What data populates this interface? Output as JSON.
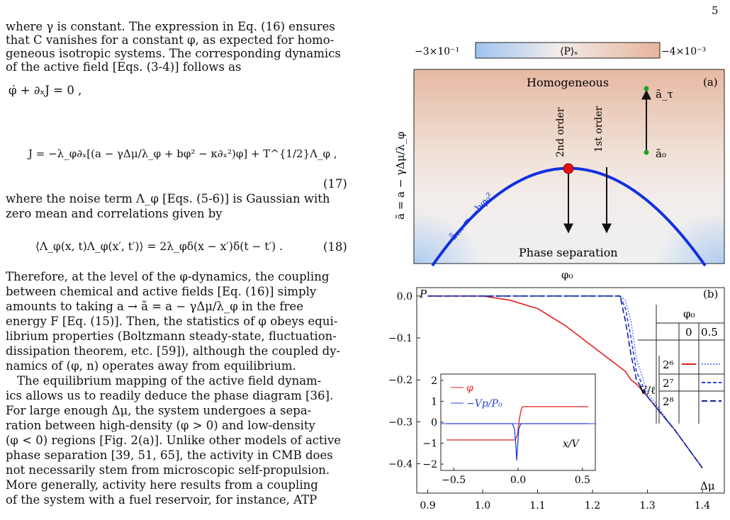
{
  "page_number": "5",
  "text": {
    "p1_l1": "where γ is constant. The expression in Eq. (16) ensures",
    "p1_l2": "that C vanishes for a constant φ, as expected for homo-",
    "p1_l3": "geneous isotropic systems. The corresponding dynamics",
    "p1_l4": "of the active field [Eqs. (3-4)] follows as",
    "eq17a": "φ̇ + ∂ₓJ = 0 ,",
    "eq17b": "J = −λ_φ∂ₓ[(a − γΔμ/λ_φ + bφ² − κ∂ₓ²)φ] + T^{1/2}Λ_φ ,",
    "eq17_num": "(17)",
    "p2_l1": "where the noise term Λ_φ [Eqs. (5-6)] is Gaussian with",
    "p2_l2": "zero mean and correlations given by",
    "eq18": "⟨Λ_φ(x, t)Λ_φ(x′, t′)⟩ = 2λ_φδ(x − x′)δ(t − t′) .",
    "eq18_num": "(18)",
    "p3_l1": "Therefore, at the level of the φ-dynamics, the coupling",
    "p3_l2": "between chemical and active fields [Eq. (16)] simply",
    "p3_l3": "amounts to taking a → ã = a − γΔμ/λ_φ in the free",
    "p3_l4": "energy F [Eq. (15)]. Then, the statistics of φ obeys equi-",
    "p3_l5": "librium properties (Boltzmann steady-state, fluctuation-",
    "p3_l6": "dissipation theorem, etc. [59]), although the coupled dy-",
    "p3_l7": "namics of (φ, n) operates away from equilibrium.",
    "p4_l1": "The equilibrium mapping of the active field dynam-",
    "p4_l2": "ics allows us to readily deduce the phase diagram [36].",
    "p4_l3": "For large enough Δμ, the system undergoes a sepa-",
    "p4_l4": "ration between high-density (φ > 0) and low-density",
    "p4_l5": "(φ < 0) regions [Fig. 2(a)]. Unlike other models of active",
    "p4_l6": "phase separation [39, 51, 65], the activity in CMB does",
    "p4_l7": "not necessarily stem from microscopic self-propulsion.",
    "p4_l8": "More generally, activity here results from a coupling",
    "p4_l9": "of the system with a fuel reservoir, for instance, ATP"
  },
  "figure_a": {
    "colorbar_left": "−3×10⁻¹",
    "colorbar_label": "⟨P⟩ₛ",
    "colorbar_right": "−4×10⁻³",
    "panel": "(a)",
    "ylabel": "ã = a − γΔμ/λ_φ",
    "xlabel": "φ₀",
    "homogeneous": "Homogeneous",
    "phase_sep": "Phase separation",
    "second_order": "2nd order",
    "first_order": "1st order",
    "a_tau": "ã_τ",
    "a_0": "ã₀",
    "curve_label": "ã₁ₛₜ = −bφ₀²",
    "colors": {
      "curve": "#1030e0",
      "critical": "#e01010",
      "point": "#20a020",
      "hot": "#e8b8a0",
      "cold": "#a8c8f0"
    }
  },
  "chart_data": {
    "type": "line",
    "panel": "(b)",
    "ylabel": "P",
    "xlabel": "Δμ",
    "xlim": [
      0.88,
      1.44
    ],
    "ylim": [
      -0.47,
      0.02
    ],
    "xticks": [
      "0.9",
      "1.0",
      "1.1",
      "1.2",
      "1.3",
      "1.4"
    ],
    "yticks": [
      "0.0",
      "−0.1",
      "−0.2",
      "−0.3",
      "−0.4"
    ],
    "x": [
      0.9,
      1.0,
      1.05,
      1.1,
      1.15,
      1.2,
      1.25,
      1.26,
      1.27,
      1.28,
      1.3,
      1.35,
      1.4
    ],
    "series": [
      {
        "color": "#e02020",
        "style": "solid",
        "values": [
          0,
          0,
          -0.01,
          -0.03,
          -0.07,
          -0.12,
          -0.17,
          -0.18,
          -0.2,
          -0.21,
          -0.24,
          -0.32,
          -0.41
        ]
      },
      {
        "color": "#7080ff",
        "style": "dotted",
        "values": [
          0,
          0,
          0,
          0,
          0,
          0,
          0,
          -0.01,
          -0.06,
          -0.15,
          -0.23,
          -0.32,
          -0.41
        ]
      },
      {
        "color": "#2040e0",
        "style": "dashed",
        "values": [
          0,
          0,
          0,
          0,
          0,
          0,
          0,
          -0.03,
          -0.1,
          -0.18,
          -0.24,
          -0.32,
          -0.41
        ]
      },
      {
        "color": "#102090",
        "style": "longdash",
        "values": [
          0,
          0,
          0,
          0,
          0,
          0,
          0,
          -0.06,
          -0.14,
          -0.2,
          -0.24,
          -0.32,
          -0.41
        ]
      }
    ],
    "legend_table": {
      "col_header": "φ₀",
      "cols": [
        "0",
        "0.5"
      ],
      "row_header": "V/ℓ",
      "rows": [
        "2⁶",
        "2⁷",
        "2⁸"
      ]
    },
    "inset": {
      "xlabel": "x/V",
      "xticks": [
        "−0.5",
        "0.0",
        "0.5"
      ],
      "yticks": [
        "2",
        "1",
        "0",
        "−1",
        "−2"
      ],
      "legend": [
        "φ",
        "−Vp/P₀"
      ],
      "xlim": [
        -0.6,
        0.6
      ],
      "ylim": [
        -2.3,
        2.3
      ]
    }
  }
}
